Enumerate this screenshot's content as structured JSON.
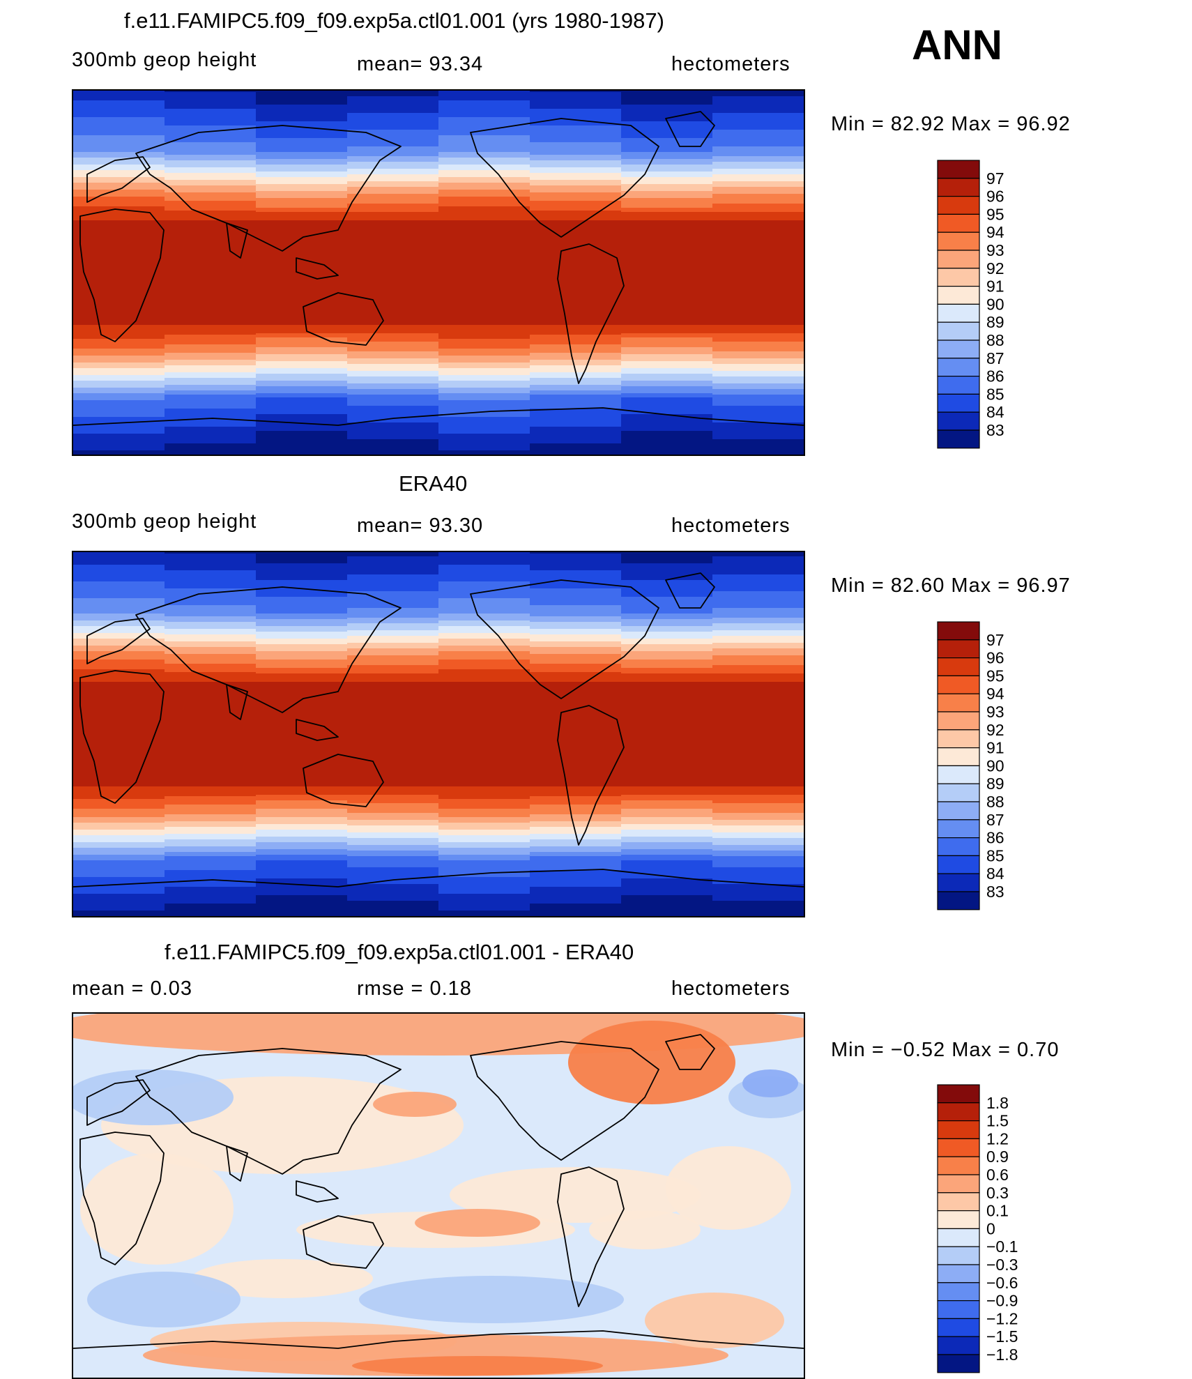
{
  "annotation": "ANN",
  "panels": [
    {
      "id": "model",
      "title": "f.e11.FAMIPC5.f09_f09.exp5a.ctl01.001 (yrs 1980-1987)",
      "left_label": "300mb  geop  height",
      "center_label": "mean=   93.34",
      "right_label": "hectometers",
      "minmax": "Min  =   82.92  Max  =   96.92",
      "colorbar": {
        "labels": [
          "97",
          "96",
          "95",
          "94",
          "93",
          "92",
          "91",
          "90",
          "89",
          "88",
          "87",
          "86",
          "85",
          "84",
          "83"
        ],
        "colors": [
          "#830b0b",
          "#b5200a",
          "#d83a0e",
          "#f05a25",
          "#f88049",
          "#fba57a",
          "#fdc8a7",
          "#fde9d7",
          "#dbe9fb",
          "#b4cdf7",
          "#8dadf5",
          "#658ef2",
          "#3f6cee",
          "#1f4be3",
          "#0c29b8",
          "#031683"
        ]
      }
    },
    {
      "id": "obs",
      "title": "ERA40",
      "left_label": "300mb  geop  height",
      "center_label": "mean=   93.30",
      "right_label": "hectometers",
      "minmax": "Min  =   82.60  Max  =   96.97",
      "colorbar": {
        "labels": [
          "97",
          "96",
          "95",
          "94",
          "93",
          "92",
          "91",
          "90",
          "89",
          "88",
          "87",
          "86",
          "85",
          "84",
          "83"
        ],
        "colors": [
          "#830b0b",
          "#b5200a",
          "#d83a0e",
          "#f05a25",
          "#f88049",
          "#fba57a",
          "#fdc8a7",
          "#fde9d7",
          "#dbe9fb",
          "#b4cdf7",
          "#8dadf5",
          "#658ef2",
          "#3f6cee",
          "#1f4be3",
          "#0c29b8",
          "#031683"
        ]
      }
    },
    {
      "id": "diff",
      "title": "f.e11.FAMIPC5.f09_f09.exp5a.ctl01.001 - ERA40",
      "left_label": "mean  =     0.03",
      "center_label": "rmse  =     0.18",
      "right_label": "hectometers",
      "minmax": "Min  =   −0.52  Max  =     0.70",
      "colorbar": {
        "labels": [
          "1.8",
          "1.5",
          "1.2",
          "0.9",
          "0.6",
          "0.3",
          "0.1",
          "0",
          "−0.1",
          "−0.3",
          "−0.6",
          "−0.9",
          "−1.2",
          "−1.5",
          "−1.8"
        ],
        "colors": [
          "#830b0b",
          "#b5200a",
          "#d83a0e",
          "#f05a25",
          "#f88049",
          "#fba57a",
          "#fdc8a7",
          "#fde9d7",
          "#dbe9fb",
          "#b4cdf7",
          "#8dadf5",
          "#658ef2",
          "#3f6cee",
          "#1f4be3",
          "#0c29b8",
          "#031683"
        ]
      }
    }
  ]
}
